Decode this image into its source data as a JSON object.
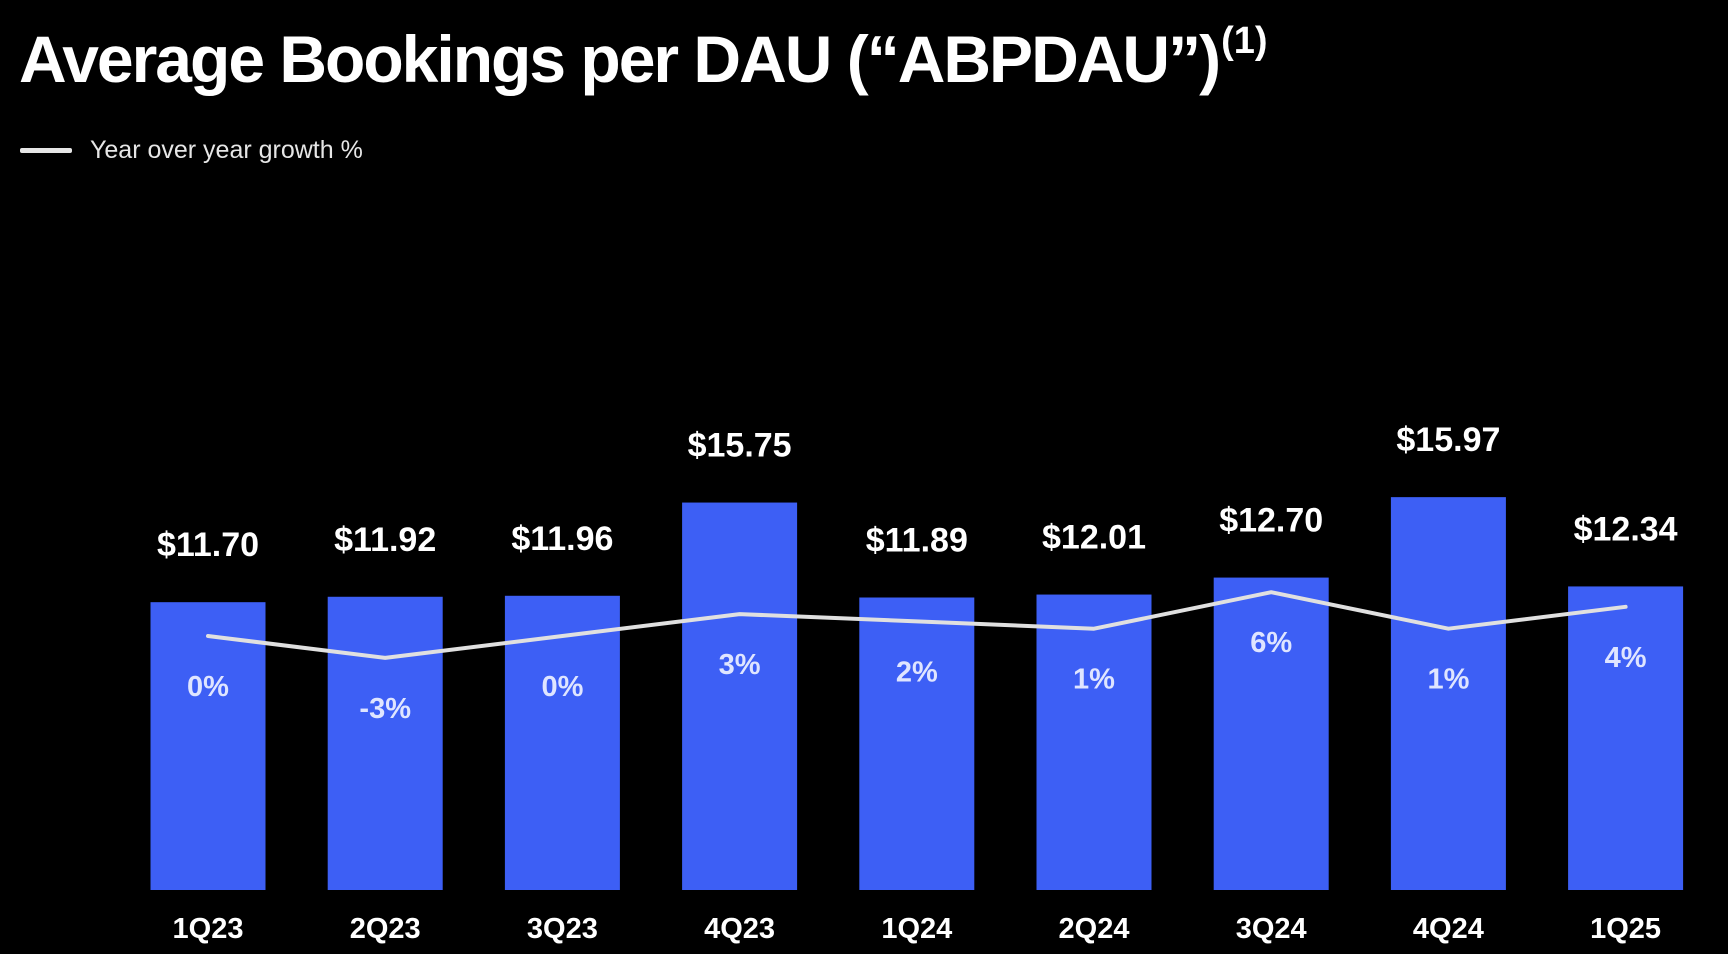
{
  "title": "Average Bookings per DAU (“ABPDAU”)",
  "title_footnote": "(1)",
  "legend": {
    "line_label": "Year over year growth %"
  },
  "colors": {
    "background": "#000000",
    "bar": "#3d5ff5",
    "line": "#e0e0e0",
    "text": "#ffffff",
    "growth_label": "#dfe5ff"
  },
  "chart_data": {
    "type": "bar",
    "categories": [
      "1Q23",
      "2Q23",
      "3Q23",
      "4Q23",
      "1Q24",
      "2Q24",
      "3Q24",
      "4Q24",
      "1Q25"
    ],
    "series": [
      {
        "values": [
          11.7,
          11.92,
          11.96,
          15.75,
          11.89,
          12.01,
          12.7,
          15.97,
          12.34
        ],
        "labels": [
          "$11.70",
          "$11.92",
          "$11.96",
          "$15.75",
          "$11.89",
          "$12.01",
          "$12.70",
          "$15.97",
          "$12.34"
        ]
      },
      {
        "name": "Year over year growth %",
        "type": "line",
        "values": [
          0,
          -3,
          0,
          3,
          2,
          1,
          6,
          1,
          4
        ],
        "labels": [
          "0%",
          "-3%",
          "0%",
          "3%",
          "2%",
          "1%",
          "6%",
          "1%",
          "4%"
        ]
      }
    ],
    "grid": false,
    "legend_position": "top-left"
  }
}
